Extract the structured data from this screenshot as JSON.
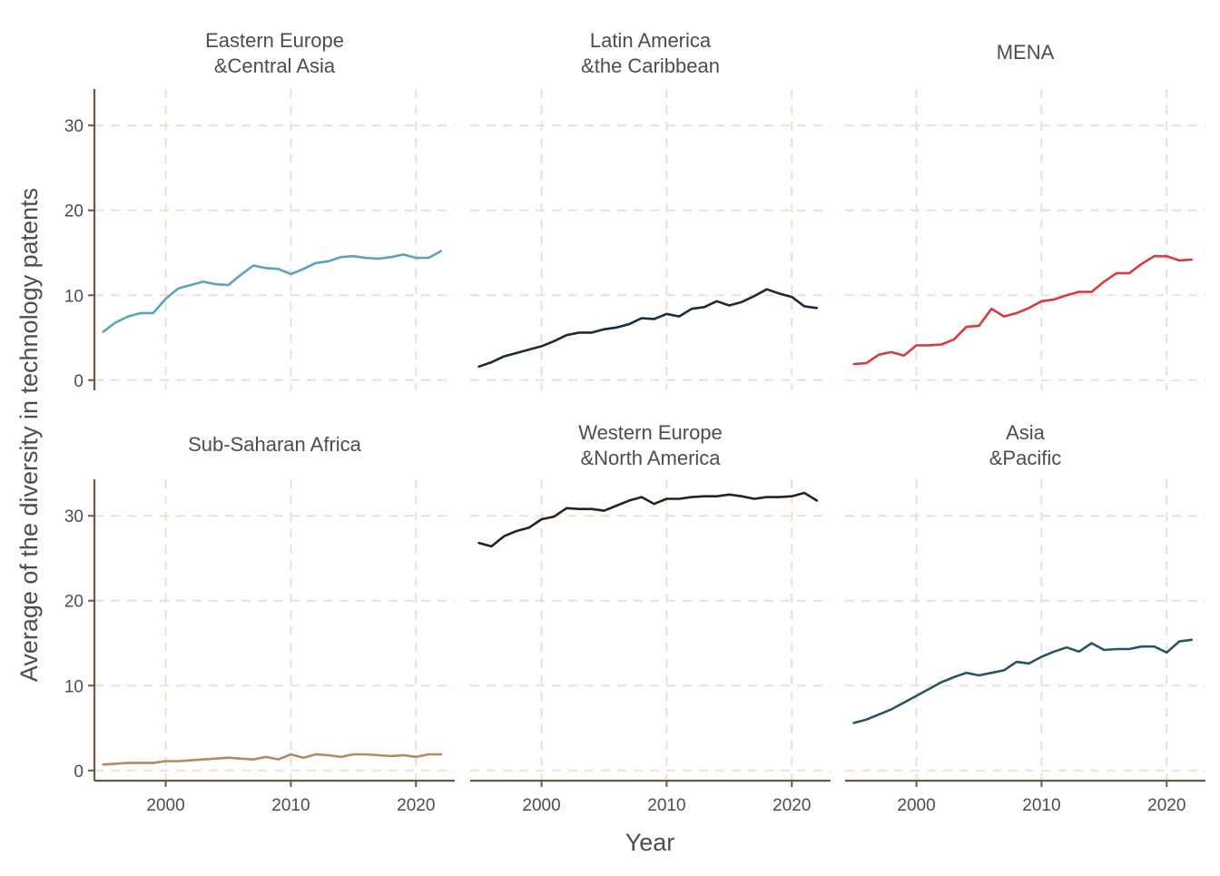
{
  "chart_data": {
    "type": "line",
    "xlabel": "Year",
    "ylabel": "Average of the diversity in technology patents",
    "xlim": [
      1994.3,
      2023.1
    ],
    "ylim": [
      -1.2,
      34.3
    ],
    "x_ticks": [
      2000,
      2010,
      2020
    ],
    "y_ticks": [
      0,
      10,
      20,
      30
    ],
    "grid": true,
    "x_axis_facets": [
      false,
      false,
      false,
      true,
      true,
      true
    ],
    "y_axis_facets": [
      true,
      false,
      false,
      true,
      false,
      false
    ],
    "x": [
      1995,
      1996,
      1997,
      1998,
      1999,
      2000,
      2001,
      2002,
      2003,
      2004,
      2005,
      2006,
      2007,
      2008,
      2009,
      2010,
      2011,
      2012,
      2013,
      2014,
      2015,
      2016,
      2017,
      2018,
      2019,
      2020,
      2021,
      2022
    ],
    "panels": [
      {
        "strip": [
          "Eastern Europe",
          "&Central Asia"
        ],
        "color": "#5ba3bd",
        "values": [
          5.7,
          6.8,
          7.5,
          7.9,
          7.9,
          9.6,
          10.8,
          11.2,
          11.6,
          11.3,
          11.2,
          12.4,
          13.5,
          13.2,
          13.1,
          12.5,
          13.1,
          13.8,
          14.0,
          14.5,
          14.6,
          14.4,
          14.3,
          14.5,
          14.8,
          14.4,
          14.4,
          15.2
        ]
      },
      {
        "strip": [
          "Latin America",
          "&the Caribbean"
        ],
        "color": "#1d2b36",
        "values": [
          1.6,
          2.1,
          2.8,
          3.2,
          3.6,
          4.0,
          4.6,
          5.3,
          5.6,
          5.6,
          6.0,
          6.2,
          6.6,
          7.3,
          7.2,
          7.8,
          7.5,
          8.4,
          8.6,
          9.3,
          8.8,
          9.2,
          9.9,
          10.7,
          10.2,
          9.8,
          8.7,
          8.5
        ]
      },
      {
        "strip": [
          "MENA"
        ],
        "color": "#d9393f",
        "values": [
          1.9,
          2.0,
          3.0,
          3.3,
          2.9,
          4.1,
          4.1,
          4.2,
          4.8,
          6.3,
          6.4,
          8.4,
          7.5,
          7.9,
          8.5,
          9.3,
          9.5,
          10.0,
          10.4,
          10.4,
          11.6,
          12.6,
          12.6,
          13.7,
          14.6,
          14.6,
          14.1,
          14.2
        ]
      },
      {
        "strip": [
          "Sub-Saharan Africa"
        ],
        "color": "#b48a62",
        "values": [
          0.7,
          0.8,
          0.9,
          0.9,
          0.9,
          1.1,
          1.1,
          1.2,
          1.3,
          1.4,
          1.5,
          1.4,
          1.3,
          1.6,
          1.3,
          1.9,
          1.5,
          1.9,
          1.8,
          1.6,
          1.9,
          1.9,
          1.8,
          1.7,
          1.8,
          1.6,
          1.9,
          1.9
        ]
      },
      {
        "strip": [
          "Western Europe",
          "&North America"
        ],
        "color": "#2b211b",
        "values": [
          26.8,
          26.4,
          27.6,
          28.2,
          28.6,
          29.6,
          29.9,
          30.9,
          30.8,
          30.8,
          30.6,
          31.2,
          31.8,
          32.2,
          31.4,
          32.0,
          32.0,
          32.2,
          32.3,
          32.3,
          32.5,
          32.3,
          32.0,
          32.2,
          32.2,
          32.3,
          32.7,
          31.8
        ]
      },
      {
        "strip": [
          "Asia",
          "&Pacific"
        ],
        "color": "#2a5466",
        "values": [
          5.6,
          6.0,
          6.6,
          7.2,
          8.0,
          8.8,
          9.6,
          10.4,
          11.0,
          11.5,
          11.2,
          11.5,
          11.8,
          12.8,
          12.6,
          13.4,
          14.0,
          14.5,
          14.0,
          15.0,
          14.2,
          14.3,
          14.3,
          14.6,
          14.6,
          13.9,
          15.2,
          15.4
        ]
      }
    ]
  }
}
